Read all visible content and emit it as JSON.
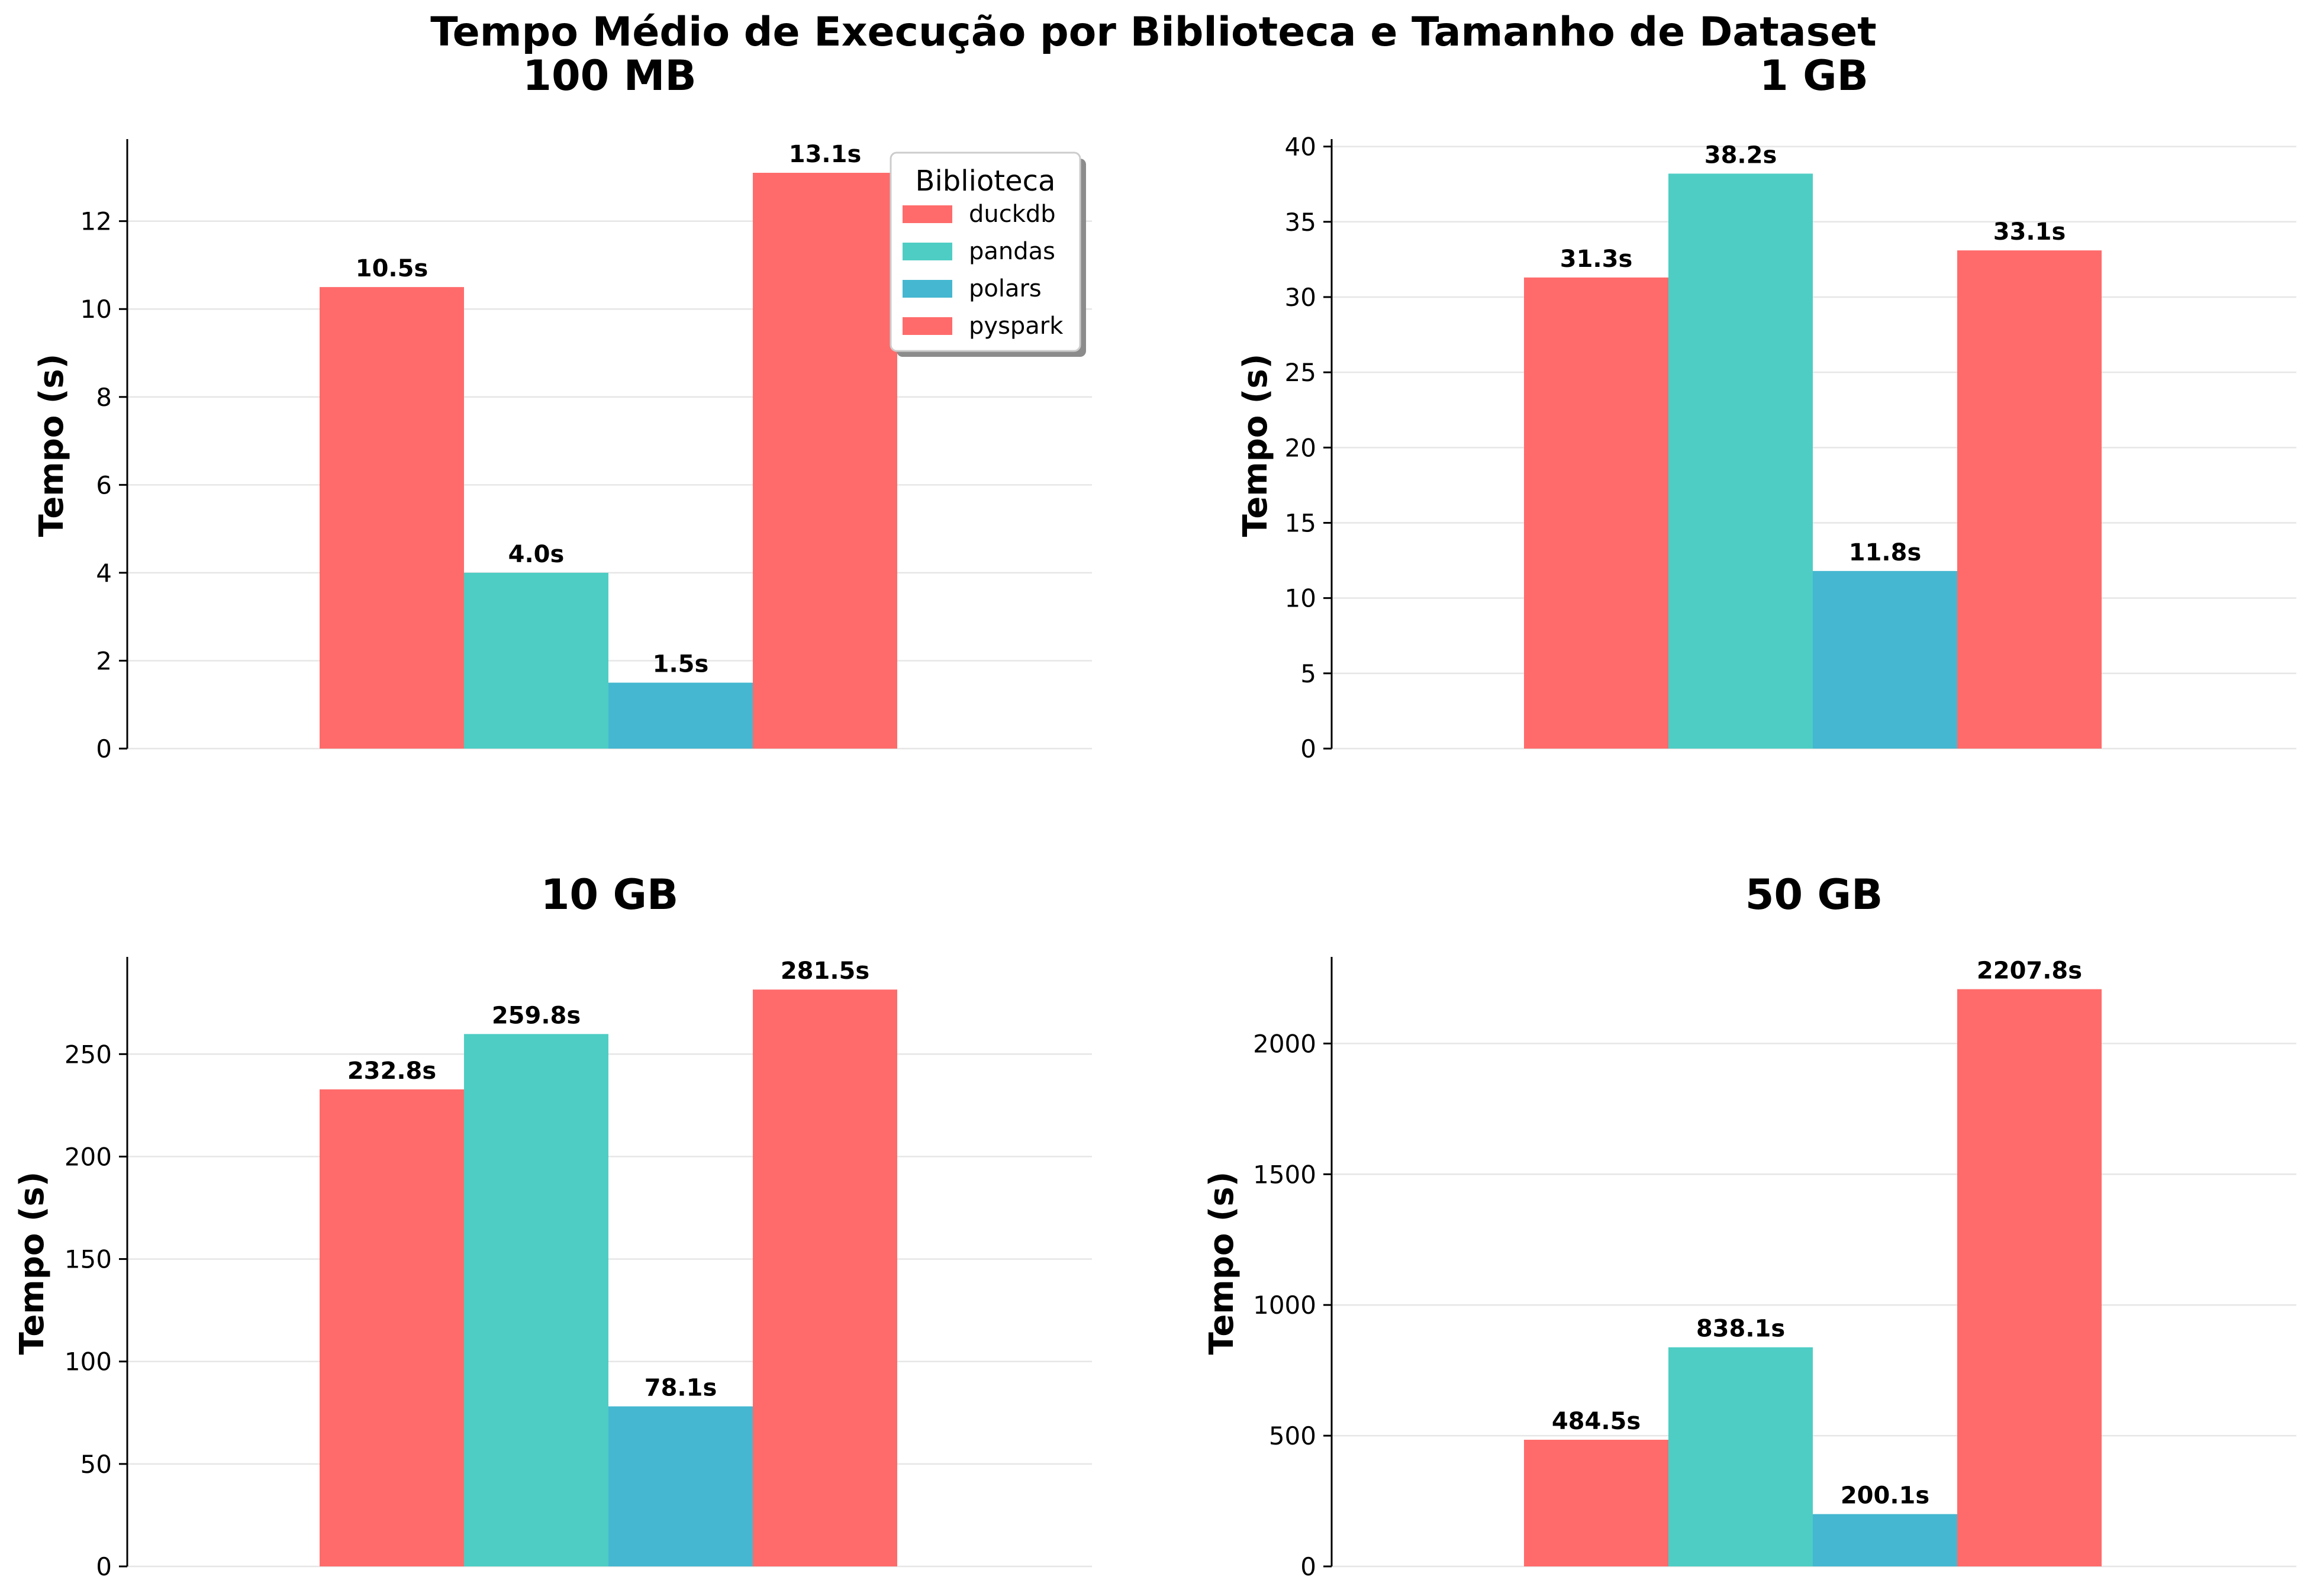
{
  "figure": {
    "title": "Tempo Médio de Execução por Biblioteca e Tamanho de Dataset"
  },
  "legend": {
    "title": "Biblioteca",
    "placement": "upper-right of first panel",
    "items": [
      {
        "label": "duckdb",
        "color": "#FF6B6B"
      },
      {
        "label": "pandas",
        "color": "#4ECDC4"
      },
      {
        "label": "polars",
        "color": "#45B7D1"
      },
      {
        "label": "pyspark",
        "color": "#FF6B6B"
      }
    ]
  },
  "colors": {
    "duckdb": "#FF6B6B",
    "pandas": "#4ECDC4",
    "polars": "#45B7D1",
    "pyspark": "#FF6B6B",
    "grid": "#e6e6e6",
    "axis": "#000000"
  },
  "chart_data": [
    {
      "type": "bar",
      "title": "100 MB",
      "ylabel": "Tempo (s)",
      "xlabel": "",
      "grid": true,
      "categories": [
        "duckdb",
        "pandas",
        "polars",
        "pyspark"
      ],
      "values": [
        10.5,
        4.0,
        1.5,
        13.1
      ],
      "value_labels": [
        "10.5s",
        "4.0s",
        "1.5s",
        "13.1s"
      ],
      "ylim": [
        0,
        13.8
      ],
      "yticks": [
        0,
        2,
        4,
        6,
        8,
        10,
        12
      ],
      "ytick_labels": [
        "0",
        "2",
        "4",
        "6",
        "8",
        "10",
        "12"
      ]
    },
    {
      "type": "bar",
      "title": "1 GB",
      "ylabel": "Tempo (s)",
      "xlabel": "",
      "grid": true,
      "categories": [
        "duckdb",
        "pandas",
        "polars",
        "pyspark"
      ],
      "values": [
        31.3,
        38.2,
        11.8,
        33.1
      ],
      "value_labels": [
        "31.3s",
        "38.2s",
        "11.8s",
        "33.1s"
      ],
      "ylim": [
        0,
        40.3
      ],
      "yticks": [
        0,
        5,
        10,
        15,
        20,
        25,
        30,
        35,
        40
      ],
      "ytick_labels": [
        "0",
        "5",
        "10",
        "15",
        "20",
        "25",
        "30",
        "35",
        "40"
      ]
    },
    {
      "type": "bar",
      "title": "10 GB",
      "ylabel": "Tempo (s)",
      "xlabel": "",
      "grid": true,
      "categories": [
        "duckdb",
        "pandas",
        "polars",
        "pyspark"
      ],
      "values": [
        232.8,
        259.8,
        78.1,
        281.5
      ],
      "value_labels": [
        "232.8s",
        "259.8s",
        "78.1s",
        "281.5s"
      ],
      "ylim": [
        0,
        296
      ],
      "yticks": [
        0,
        50,
        100,
        150,
        200,
        250
      ],
      "ytick_labels": [
        "0",
        "50",
        "100",
        "150",
        "200",
        "250"
      ]
    },
    {
      "type": "bar",
      "title": "50 GB",
      "ylabel": "Tempo (s)",
      "xlabel": "",
      "grid": true,
      "categories": [
        "duckdb",
        "pandas",
        "polars",
        "pyspark"
      ],
      "values": [
        484.5,
        838.1,
        200.1,
        2207.8
      ],
      "value_labels": [
        "484.5s",
        "838.1s",
        "200.1s",
        "2207.8s"
      ],
      "ylim": [
        0,
        2320
      ],
      "yticks": [
        0,
        500,
        1000,
        1500,
        2000
      ],
      "ytick_labels": [
        "0",
        "500",
        "1000",
        "1500",
        "2000"
      ]
    }
  ]
}
